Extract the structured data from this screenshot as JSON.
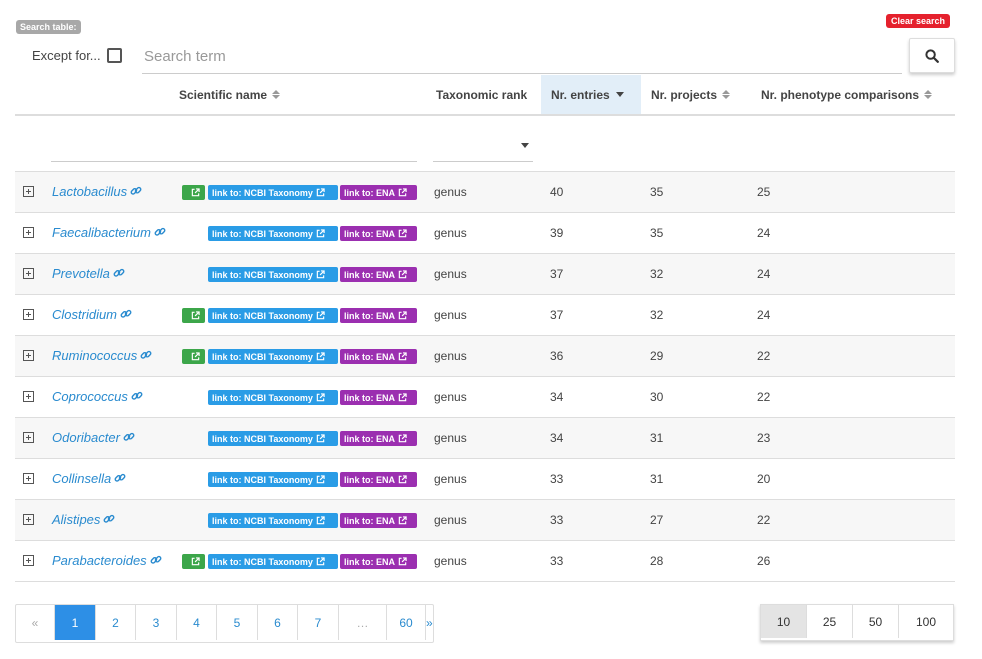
{
  "search": {
    "badge": "Search table:",
    "clear_label": "Clear search",
    "except_label": "Except for...",
    "placeholder": "Search term",
    "button_icon": "search-icon"
  },
  "columns": {
    "name": "Scientific name",
    "rank": "Taxonomic rank",
    "entries": "Nr. entries",
    "projects": "Nr. projects",
    "phenotypes": "Nr. phenotype comparisons"
  },
  "tags": {
    "ncbi": "link to: NCBI Taxonomy",
    "ena": "link to: ENA"
  },
  "colors": {
    "green_tag": "#3ca64a",
    "ncbi_tag": "#2a9ce6",
    "ena_tag": "#9b2fb0",
    "link": "#2a8bcf",
    "active_page": "#2d8fe6",
    "clear_button": "#e5212d"
  },
  "rows": [
    {
      "name": "Lactobacillus",
      "green": true,
      "rank": "genus",
      "entries": "40",
      "projects": "35",
      "phenotypes": "25"
    },
    {
      "name": "Faecalibacterium",
      "green": false,
      "rank": "genus",
      "entries": "39",
      "projects": "35",
      "phenotypes": "24"
    },
    {
      "name": "Prevotella",
      "green": false,
      "rank": "genus",
      "entries": "37",
      "projects": "32",
      "phenotypes": "24"
    },
    {
      "name": "Clostridium",
      "green": true,
      "rank": "genus",
      "entries": "37",
      "projects": "32",
      "phenotypes": "24"
    },
    {
      "name": "Ruminococcus",
      "green": true,
      "rank": "genus",
      "entries": "36",
      "projects": "29",
      "phenotypes": "22"
    },
    {
      "name": "Coprococcus",
      "green": false,
      "rank": "genus",
      "entries": "34",
      "projects": "30",
      "phenotypes": "22"
    },
    {
      "name": "Odoribacter",
      "green": false,
      "rank": "genus",
      "entries": "34",
      "projects": "31",
      "phenotypes": "23"
    },
    {
      "name": "Collinsella",
      "green": false,
      "rank": "genus",
      "entries": "33",
      "projects": "31",
      "phenotypes": "20"
    },
    {
      "name": "Alistipes",
      "green": false,
      "rank": "genus",
      "entries": "33",
      "projects": "27",
      "phenotypes": "22"
    },
    {
      "name": "Parabacteroides",
      "green": true,
      "rank": "genus",
      "entries": "33",
      "projects": "28",
      "phenotypes": "26"
    }
  ],
  "pagination": {
    "prev": "«",
    "pages": [
      "1",
      "2",
      "3",
      "4",
      "5",
      "6",
      "7",
      "…",
      "60"
    ],
    "next": "»",
    "active": "1"
  },
  "page_sizes": {
    "options": [
      "10",
      "25",
      "50",
      "100"
    ],
    "active": "10"
  }
}
